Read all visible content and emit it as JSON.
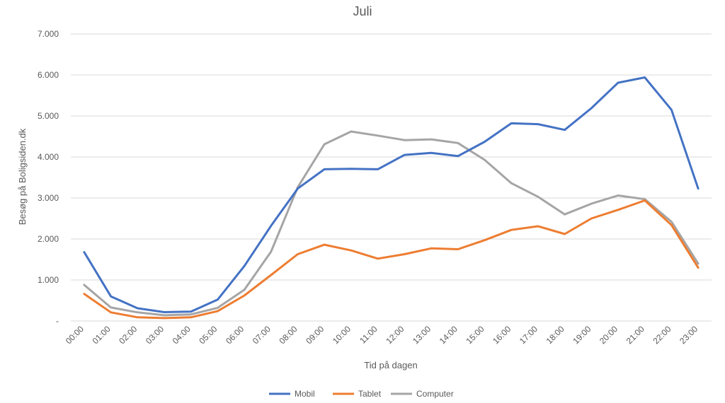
{
  "chart_data": {
    "type": "line",
    "title": "Juli",
    "xlabel": "Tid på dagen",
    "ylabel": "Besøg på Boligsiden.dk",
    "ylim": [
      0,
      7000
    ],
    "ytick_values": [
      0,
      1000,
      2000,
      3000,
      4000,
      5000,
      6000,
      7000
    ],
    "ytick_labels": [
      "-",
      "1.000",
      "2.000",
      "3.000",
      "4.000",
      "5.000",
      "6.000",
      "7.000"
    ],
    "grid": true,
    "legend_position": "bottom",
    "categories": [
      "00:00",
      "01:00",
      "02:00",
      "03:00",
      "04:00",
      "05:00",
      "06:00",
      "07:00",
      "08:00",
      "09:00",
      "10:00",
      "11:00",
      "12:00",
      "13:00",
      "14:00",
      "15:00",
      "16:00",
      "17:00",
      "18:00",
      "19:00",
      "20:00",
      "21:00",
      "22:00",
      "23:00"
    ],
    "series": [
      {
        "name": "Mobil",
        "color": "#4472c4",
        "values": [
          1680,
          600,
          310,
          215,
          230,
          520,
          1340,
          2320,
          3230,
          3700,
          3710,
          3700,
          4050,
          4100,
          4020,
          4370,
          4820,
          4800,
          4660,
          5190,
          5810,
          5940,
          5150,
          3230
        ]
      },
      {
        "name": "Tablet",
        "color": "#ed7d31",
        "values": [
          660,
          210,
          90,
          70,
          90,
          240,
          620,
          1120,
          1630,
          1860,
          1720,
          1520,
          1630,
          1770,
          1750,
          1970,
          2220,
          2310,
          2120,
          2500,
          2710,
          2940,
          2340,
          1300
        ]
      },
      {
        "name": "Computer",
        "color": "#a5a5a5",
        "values": [
          880,
          330,
          210,
          140,
          160,
          320,
          760,
          1690,
          3260,
          4310,
          4620,
          4520,
          4410,
          4430,
          4340,
          3930,
          3360,
          3030,
          2600,
          2860,
          3060,
          2970,
          2420,
          1400
        ]
      }
    ]
  }
}
